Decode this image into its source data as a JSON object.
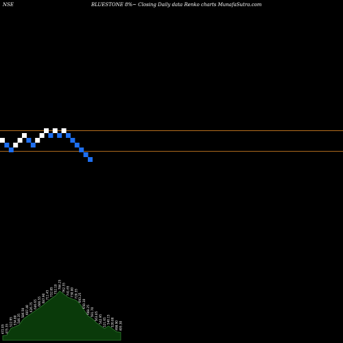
{
  "header": {
    "exchange": "NSE",
    "caption": "BLUESTONE 8%~  Closing Daily data  Renko  charts MunafaSutra.com"
  },
  "colors": {
    "background": "#000000",
    "brick_up": "#ffffff",
    "brick_down": "#1e6ff0",
    "level_line": "#b8701e",
    "volume_fill": "#0a3a0a",
    "volume_edge": "#2e7a2e",
    "volume_label": "#ffffff"
  },
  "chart_data": {
    "type": "renko",
    "bricks": [
      {
        "dir": "up",
        "level": 4
      },
      {
        "dir": "down",
        "level": 3
      },
      {
        "dir": "down",
        "level": 2
      },
      {
        "dir": "up",
        "level": 3
      },
      {
        "dir": "up",
        "level": 4
      },
      {
        "dir": "up",
        "level": 5
      },
      {
        "dir": "down",
        "level": 4
      },
      {
        "dir": "down",
        "level": 3
      },
      {
        "dir": "up",
        "level": 4
      },
      {
        "dir": "up",
        "level": 5
      },
      {
        "dir": "up",
        "level": 6
      },
      {
        "dir": "down",
        "level": 5
      },
      {
        "dir": "up",
        "level": 6
      },
      {
        "dir": "down",
        "level": 5
      },
      {
        "dir": "up",
        "level": 6
      },
      {
        "dir": "down",
        "level": 5
      },
      {
        "dir": "down",
        "level": 4
      },
      {
        "dir": "down",
        "level": 3
      },
      {
        "dir": "down",
        "level": 2
      },
      {
        "dir": "down",
        "level": 1
      },
      {
        "dir": "down",
        "level": 0
      }
    ],
    "level_lines": [
      5.5,
      1.2
    ],
    "volume_labels": [
      "472.05",
      "475.35",
      "522.95",
      "534.80",
      "546.35",
      "586.50",
      "607.40",
      "626.75",
      "646.65",
      "666.55",
      "687.90",
      "711.45",
      "732.85",
      "752.10",
      "784.25",
      "762.55",
      "741.65",
      "730.00",
      "720.35",
      "693.25",
      "650.10",
      "608.25",
      "591.70",
      "563.05",
      "542.95",
      "521.65",
      "540.15",
      "520.00",
      "498.90",
      "495.30"
    ]
  }
}
